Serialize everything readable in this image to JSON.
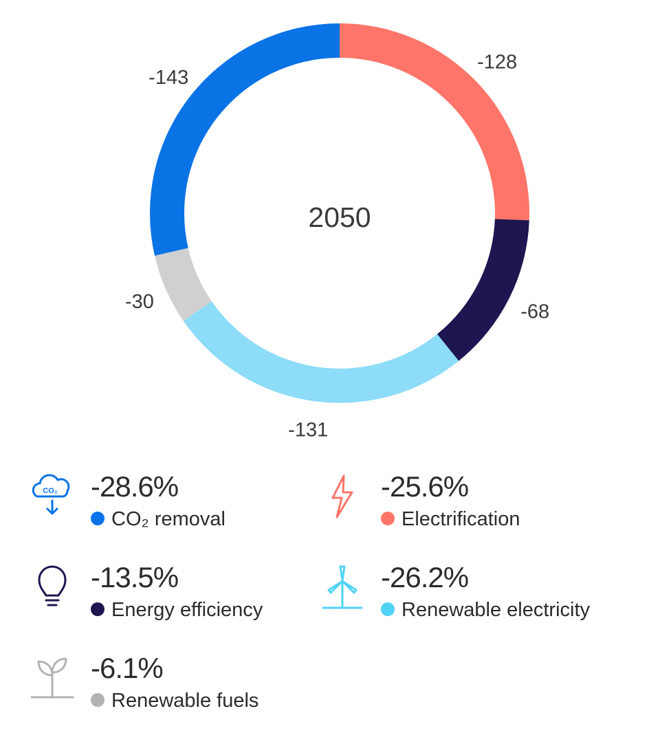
{
  "chart_data": {
    "type": "pie",
    "center_label": "2050",
    "slices": [
      {
        "name": "Electrification",
        "value": -128,
        "value_label": "-128",
        "color": "#ff7569"
      },
      {
        "name": "Energy efficiency",
        "value": -68,
        "value_label": "-68",
        "color": "#1e1650"
      },
      {
        "name": "Renewable electricity",
        "value": -131,
        "value_label": "-131",
        "color": "#8ddcf8"
      },
      {
        "name": "Renewable fuels",
        "value": -30,
        "value_label": "-30",
        "color": "#d0d0d0"
      },
      {
        "name": "CO₂ removal",
        "value": -143,
        "value_label": "-143",
        "color": "#0a73e6"
      }
    ]
  },
  "legend": {
    "co2_removal": {
      "percent": "-28.6%",
      "label": "CO₂ removal",
      "color": "#0a73e6",
      "icon": "co2-cloud-icon"
    },
    "electrification": {
      "percent": "-25.6%",
      "label": "Electrification",
      "color": "#ff7569",
      "icon": "lightning-bolt-icon"
    },
    "energy_efficiency": {
      "percent": "-13.5%",
      "label": "Energy efficiency",
      "color": "#1e1650",
      "icon": "lightbulb-icon"
    },
    "renewable_electricity": {
      "percent": "-26.2%",
      "label": "Renewable electricity",
      "color": "#4fd3f5",
      "icon": "wind-turbine-icon"
    },
    "renewable_fuels": {
      "percent": "-6.1%",
      "label": "Renewable fuels",
      "color": "#b3b3b3",
      "icon": "plant-sprout-icon"
    }
  }
}
